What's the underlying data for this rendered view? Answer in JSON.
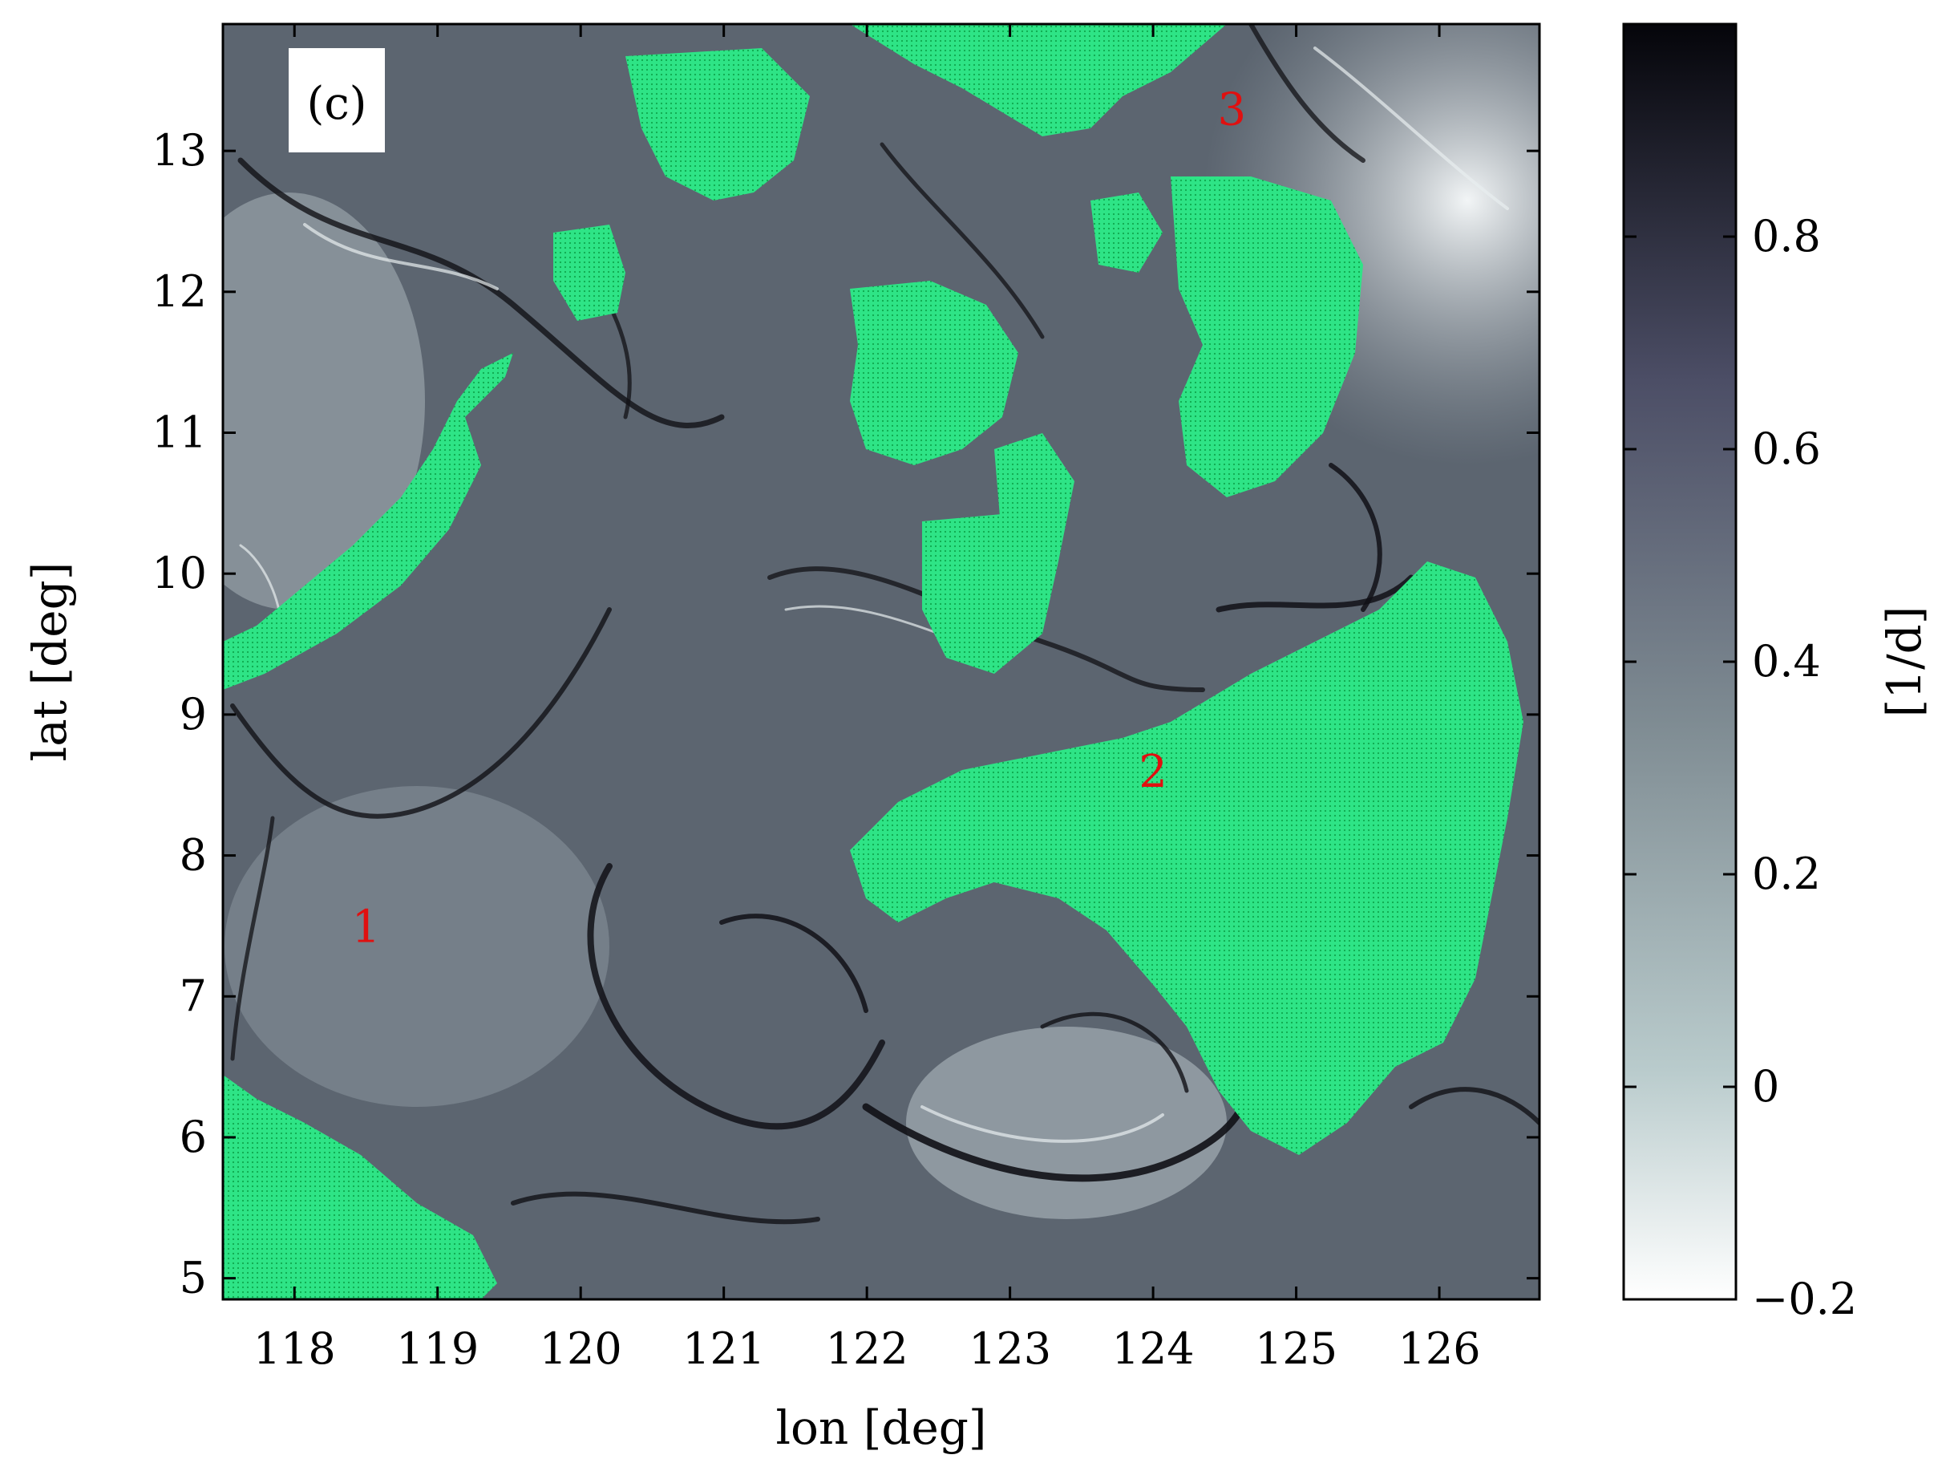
{
  "panel_label": "(c)",
  "axes": {
    "xlabel": "lon [deg]",
    "ylabel": "lat [deg]",
    "xlim": [
      117.5,
      126.7
    ],
    "ylim": [
      4.85,
      13.9
    ],
    "xticks": [
      "118",
      "119",
      "120",
      "121",
      "122",
      "123",
      "124",
      "125",
      "126"
    ],
    "yticks": [
      "5",
      "6",
      "7",
      "8",
      "9",
      "10",
      "11",
      "12",
      "13"
    ]
  },
  "colorbar": {
    "label": "[1/d]",
    "range": [
      -0.2,
      1.0
    ],
    "ticks": [
      "−0.2",
      "0",
      "0.2",
      "0.4",
      "0.6",
      "0.8"
    ],
    "tick_values": [
      -0.2,
      0,
      0.2,
      0.4,
      0.6,
      0.8
    ],
    "color_low": "#ffffff",
    "color_mid": "#8f9aa2",
    "color_high": "#0b0b12"
  },
  "land_color": "#22e07a",
  "field_base_color": "#5a616b",
  "markers": [
    {
      "text": "1",
      "lon": 118.5,
      "lat": 7.5
    },
    {
      "text": "2",
      "lon": 124.0,
      "lat": 8.6
    },
    {
      "text": "3",
      "lon": 124.55,
      "lat": 13.3
    }
  ]
}
